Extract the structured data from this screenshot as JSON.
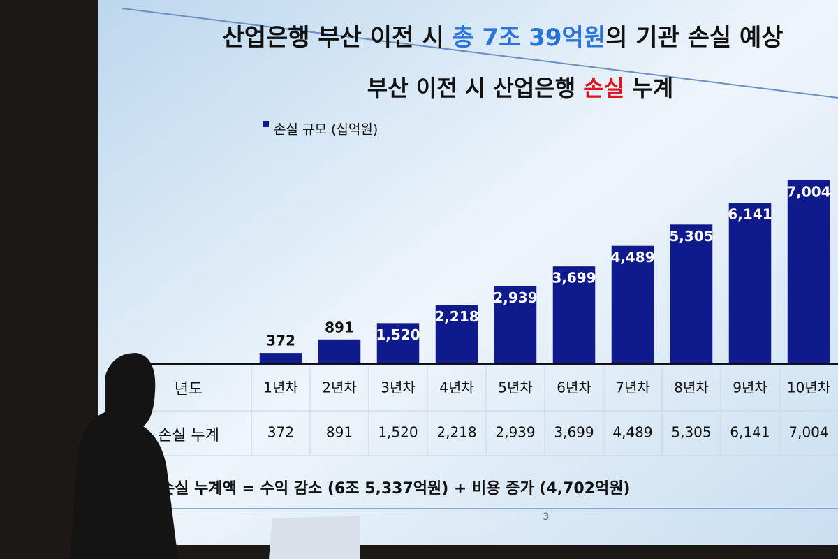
{
  "headline": {
    "before": "산업은행 부산 이전 시 ",
    "highlight": "총 7조 39억원",
    "after": "의 기관 손실 예상"
  },
  "chart_data": {
    "type": "bar",
    "title": {
      "before": "부산 이전 시 산업은행 ",
      "highlight": "손실",
      "after": " 누계"
    },
    "legend": "손실 규모 (십억원)",
    "categories": [
      "1년차",
      "2년차",
      "3년차",
      "4년차",
      "5년차",
      "6년차",
      "7년차",
      "8년차",
      "9년차",
      "10년차"
    ],
    "values": [
      372,
      891,
      1520,
      2218,
      2939,
      3699,
      4489,
      5305,
      6141,
      7004
    ],
    "value_labels": [
      "372",
      "891",
      "1,520",
      "2,218",
      "2,939",
      "3,699",
      "4,489",
      "5,305",
      "6,141",
      "7,004"
    ],
    "color": "#0f1a8c"
  },
  "table": {
    "header_label": "년도",
    "row_label": "손실 누계"
  },
  "footer": "손실 누계액 = 수익 감소 (6조 5,337억원) + 비용 증가 (4,702억원)",
  "page_number": "3"
}
